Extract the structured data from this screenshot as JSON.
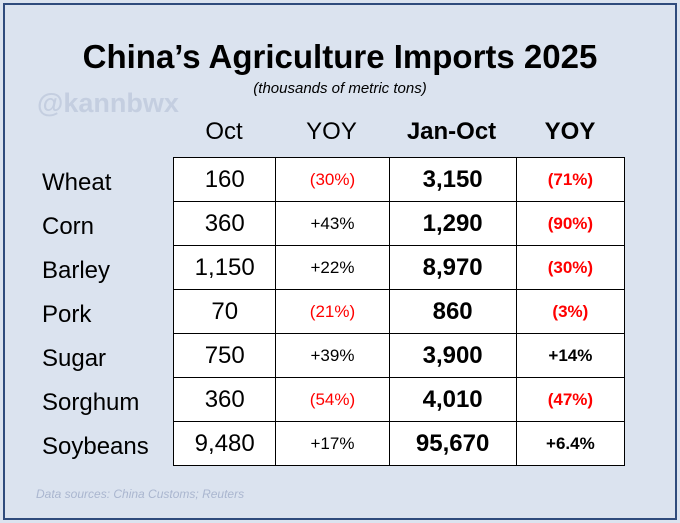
{
  "title": "China’s Agriculture Imports 2025",
  "subtitle": "(thousands of metric tons)",
  "watermark": "@kannbwx",
  "columns": {
    "oct": "Oct",
    "oct_yoy": "YOY",
    "jan_oct": "Jan-Oct",
    "jan_oct_yoy": "YOY"
  },
  "rows": [
    {
      "label": "Wheat",
      "oct": "160",
      "oct_yoy": "(30%)",
      "jan_oct": "3,150",
      "jan_oct_yoy": "(71%)"
    },
    {
      "label": "Corn",
      "oct": "360",
      "oct_yoy": "+43%",
      "jan_oct": "1,290",
      "jan_oct_yoy": "(90%)"
    },
    {
      "label": "Barley",
      "oct": "1,150",
      "oct_yoy": "+22%",
      "jan_oct": "8,970",
      "jan_oct_yoy": "(30%)"
    },
    {
      "label": "Pork",
      "oct": "70",
      "oct_yoy": "(21%)",
      "jan_oct": "860",
      "jan_oct_yoy": "(3%)"
    },
    {
      "label": "Sugar",
      "oct": "750",
      "oct_yoy": "+39%",
      "jan_oct": "3,900",
      "jan_oct_yoy": "+14%"
    },
    {
      "label": "Sorghum",
      "oct": "360",
      "oct_yoy": "(54%)",
      "jan_oct": "4,010",
      "jan_oct_yoy": "(47%)"
    },
    {
      "label": "Soybeans",
      "oct": "9,480",
      "oct_yoy": "+17%",
      "jan_oct": "95,670",
      "jan_oct_yoy": "+6.4%"
    }
  ],
  "sources": "Data sources: China Customs; Reuters",
  "colors": {
    "background": "#dbe3ef",
    "border": "#2f4b7c",
    "negative": "#ff0000",
    "watermark": "#c4cee0"
  }
}
